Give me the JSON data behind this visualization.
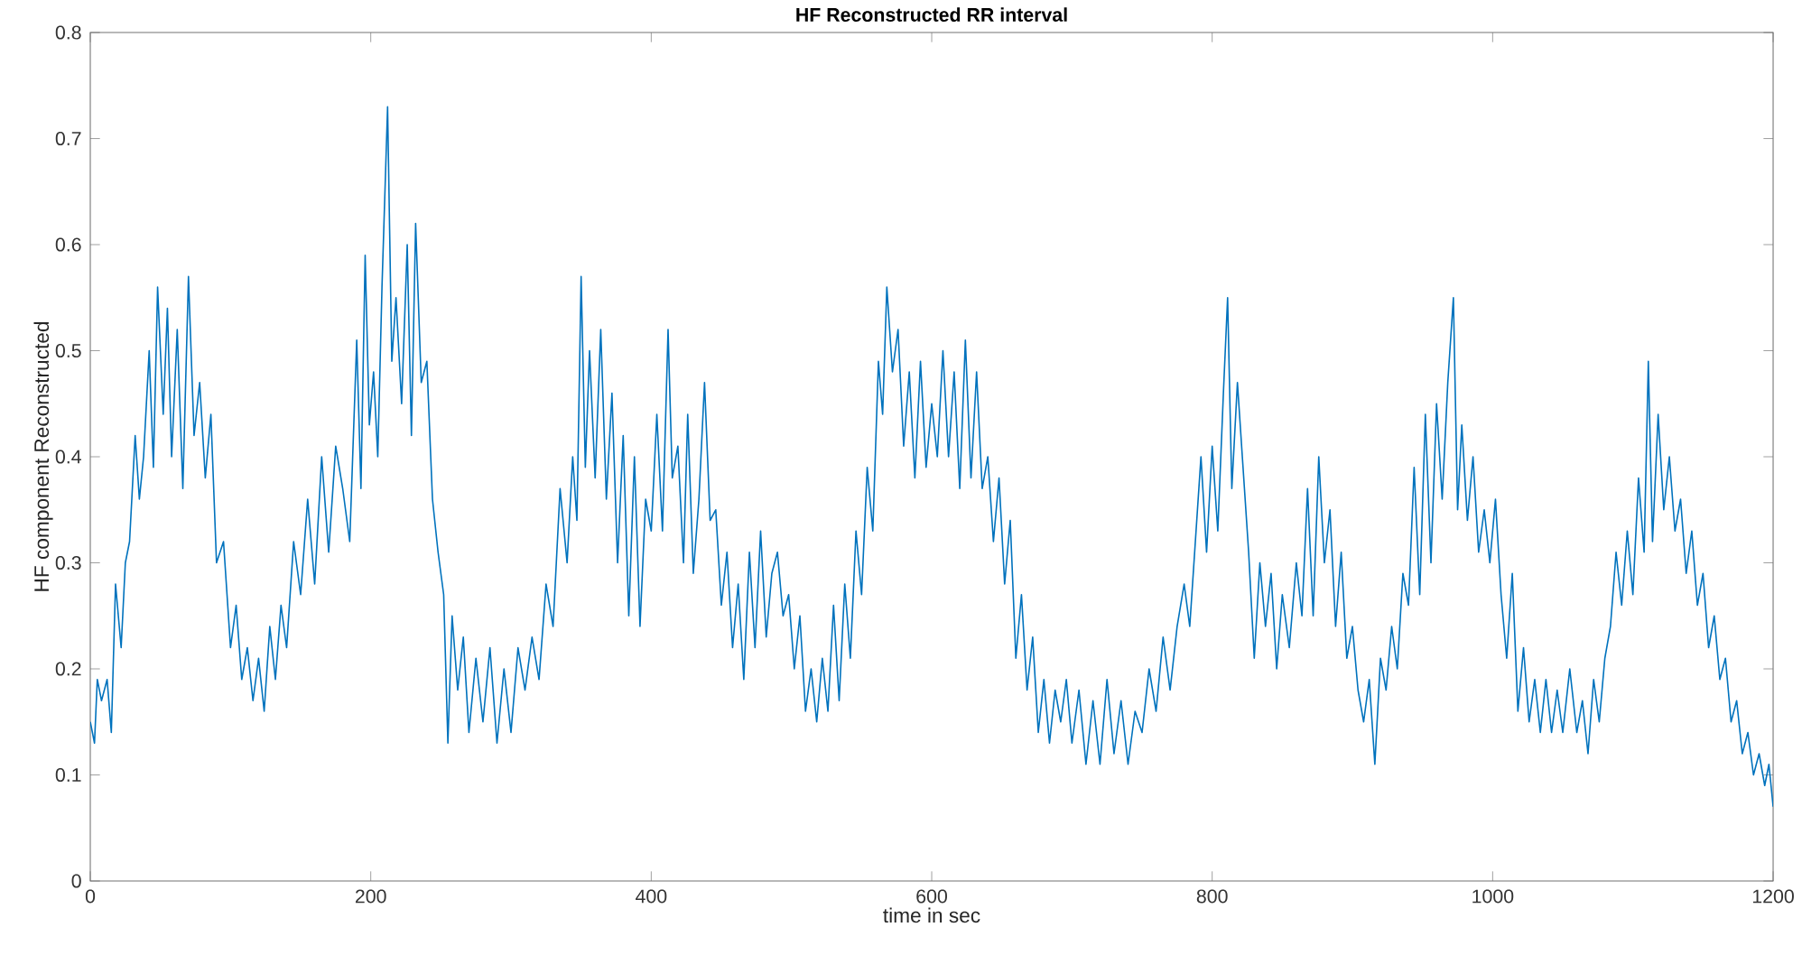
{
  "chart_data": {
    "type": "line",
    "title": "HF Reconstructed RR interval",
    "xlabel": "time in sec",
    "ylabel": "HF component Reconstructed",
    "xlim": [
      0,
      1200
    ],
    "ylim": [
      0,
      0.8
    ],
    "xticks": [
      0,
      200,
      400,
      600,
      800,
      1000,
      1200
    ],
    "yticks": [
      0,
      0.1,
      0.2,
      0.3,
      0.4,
      0.5,
      0.6,
      0.7,
      0.8
    ],
    "grid": false,
    "marker": "none",
    "line_style": "solid",
    "series": [
      {
        "color": "#0072bd",
        "x": [
          0,
          3,
          5,
          8,
          12,
          15,
          18,
          22,
          25,
          28,
          32,
          35,
          38,
          42,
          45,
          48,
          52,
          55,
          58,
          62,
          66,
          70,
          74,
          78,
          82,
          86,
          90,
          95,
          100,
          104,
          108,
          112,
          116,
          120,
          124,
          128,
          132,
          136,
          140,
          145,
          150,
          155,
          160,
          165,
          170,
          175,
          180,
          185,
          190,
          193,
          196,
          199,
          202,
          205,
          208,
          212,
          215,
          218,
          222,
          226,
          229,
          232,
          236,
          240,
          244,
          248,
          252,
          255,
          258,
          262,
          266,
          270,
          275,
          280,
          285,
          290,
          295,
          300,
          305,
          310,
          315,
          320,
          325,
          330,
          335,
          340,
          344,
          347,
          350,
          353,
          356,
          360,
          364,
          368,
          372,
          376,
          380,
          384,
          388,
          392,
          396,
          400,
          404,
          408,
          412,
          415,
          419,
          423,
          426,
          430,
          434,
          438,
          442,
          446,
          450,
          454,
          458,
          462,
          466,
          470,
          474,
          478,
          482,
          486,
          490,
          494,
          498,
          502,
          506,
          510,
          514,
          518,
          522,
          526,
          530,
          534,
          538,
          542,
          546,
          550,
          554,
          558,
          562,
          565,
          568,
          572,
          576,
          580,
          584,
          588,
          592,
          596,
          600,
          604,
          608,
          612,
          616,
          620,
          624,
          628,
          632,
          636,
          640,
          644,
          648,
          652,
          656,
          660,
          664,
          668,
          672,
          676,
          680,
          684,
          688,
          692,
          696,
          700,
          705,
          710,
          715,
          720,
          725,
          730,
          735,
          740,
          745,
          750,
          755,
          760,
          765,
          770,
          775,
          780,
          784,
          788,
          792,
          796,
          800,
          804,
          808,
          811,
          814,
          818,
          822,
          826,
          830,
          834,
          838,
          842,
          846,
          850,
          855,
          860,
          864,
          868,
          872,
          876,
          880,
          884,
          888,
          892,
          896,
          900,
          904,
          908,
          912,
          916,
          920,
          924,
          928,
          932,
          936,
          940,
          944,
          948,
          952,
          956,
          960,
          964,
          968,
          972,
          975,
          978,
          982,
          986,
          990,
          994,
          998,
          1002,
          1006,
          1010,
          1014,
          1018,
          1022,
          1026,
          1030,
          1034,
          1038,
          1042,
          1046,
          1050,
          1055,
          1060,
          1064,
          1068,
          1072,
          1076,
          1080,
          1084,
          1088,
          1092,
          1096,
          1100,
          1104,
          1108,
          1111,
          1114,
          1118,
          1122,
          1126,
          1130,
          1134,
          1138,
          1142,
          1146,
          1150,
          1154,
          1158,
          1162,
          1166,
          1170,
          1174,
          1178,
          1182,
          1186,
          1190,
          1194,
          1197,
          1200
        ],
        "values": [
          0.15,
          0.13,
          0.19,
          0.17,
          0.19,
          0.14,
          0.28,
          0.22,
          0.3,
          0.32,
          0.42,
          0.36,
          0.4,
          0.5,
          0.39,
          0.56,
          0.44,
          0.54,
          0.4,
          0.52,
          0.37,
          0.57,
          0.42,
          0.47,
          0.38,
          0.44,
          0.3,
          0.32,
          0.22,
          0.26,
          0.19,
          0.22,
          0.17,
          0.21,
          0.16,
          0.24,
          0.19,
          0.26,
          0.22,
          0.32,
          0.27,
          0.36,
          0.28,
          0.4,
          0.31,
          0.41,
          0.37,
          0.32,
          0.51,
          0.37,
          0.59,
          0.43,
          0.48,
          0.4,
          0.56,
          0.73,
          0.49,
          0.55,
          0.45,
          0.6,
          0.42,
          0.62,
          0.47,
          0.49,
          0.36,
          0.31,
          0.27,
          0.13,
          0.25,
          0.18,
          0.23,
          0.14,
          0.21,
          0.15,
          0.22,
          0.13,
          0.2,
          0.14,
          0.22,
          0.18,
          0.23,
          0.19,
          0.28,
          0.24,
          0.37,
          0.3,
          0.4,
          0.34,
          0.57,
          0.39,
          0.5,
          0.38,
          0.52,
          0.36,
          0.46,
          0.3,
          0.42,
          0.25,
          0.4,
          0.24,
          0.36,
          0.33,
          0.44,
          0.33,
          0.52,
          0.38,
          0.41,
          0.3,
          0.44,
          0.29,
          0.36,
          0.47,
          0.34,
          0.35,
          0.26,
          0.31,
          0.22,
          0.28,
          0.19,
          0.31,
          0.22,
          0.33,
          0.23,
          0.29,
          0.31,
          0.25,
          0.27,
          0.2,
          0.25,
          0.16,
          0.2,
          0.15,
          0.21,
          0.16,
          0.26,
          0.17,
          0.28,
          0.21,
          0.33,
          0.27,
          0.39,
          0.33,
          0.49,
          0.44,
          0.56,
          0.48,
          0.52,
          0.41,
          0.48,
          0.38,
          0.49,
          0.39,
          0.45,
          0.4,
          0.5,
          0.4,
          0.48,
          0.37,
          0.51,
          0.38,
          0.48,
          0.37,
          0.4,
          0.32,
          0.38,
          0.28,
          0.34,
          0.21,
          0.27,
          0.18,
          0.23,
          0.14,
          0.19,
          0.13,
          0.18,
          0.15,
          0.19,
          0.13,
          0.18,
          0.11,
          0.17,
          0.11,
          0.19,
          0.12,
          0.17,
          0.11,
          0.16,
          0.14,
          0.2,
          0.16,
          0.23,
          0.18,
          0.24,
          0.28,
          0.24,
          0.32,
          0.4,
          0.31,
          0.41,
          0.33,
          0.46,
          0.55,
          0.37,
          0.47,
          0.39,
          0.31,
          0.21,
          0.3,
          0.24,
          0.29,
          0.2,
          0.27,
          0.22,
          0.3,
          0.25,
          0.37,
          0.25,
          0.4,
          0.3,
          0.35,
          0.24,
          0.31,
          0.21,
          0.24,
          0.18,
          0.15,
          0.19,
          0.11,
          0.21,
          0.18,
          0.24,
          0.2,
          0.29,
          0.26,
          0.39,
          0.27,
          0.44,
          0.3,
          0.45,
          0.36,
          0.47,
          0.55,
          0.35,
          0.43,
          0.34,
          0.4,
          0.31,
          0.35,
          0.3,
          0.36,
          0.27,
          0.21,
          0.29,
          0.16,
          0.22,
          0.15,
          0.19,
          0.14,
          0.19,
          0.14,
          0.18,
          0.14,
          0.2,
          0.14,
          0.17,
          0.12,
          0.19,
          0.15,
          0.21,
          0.24,
          0.31,
          0.26,
          0.33,
          0.27,
          0.38,
          0.31,
          0.49,
          0.32,
          0.44,
          0.35,
          0.4,
          0.33,
          0.36,
          0.29,
          0.33,
          0.26,
          0.29,
          0.22,
          0.25,
          0.19,
          0.21,
          0.15,
          0.17,
          0.12,
          0.14,
          0.1,
          0.12,
          0.09,
          0.11,
          0.07
        ]
      }
    ]
  }
}
